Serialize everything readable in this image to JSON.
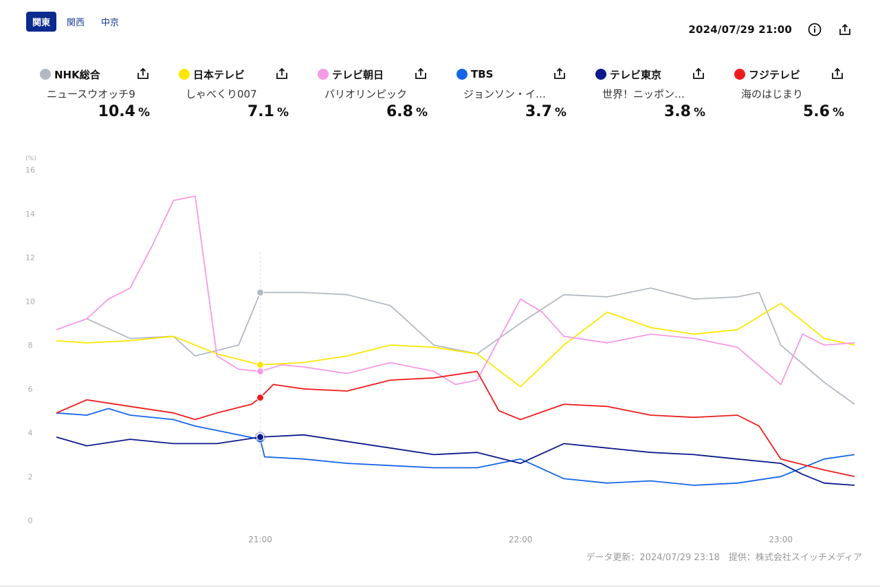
{
  "tabs": [
    {
      "label": "関東",
      "active": true
    },
    {
      "label": "関西",
      "active": false
    },
    {
      "label": "中京",
      "active": false
    }
  ],
  "header": {
    "datetime": "2024/07/29 21:00",
    "icons": [
      "info-icon",
      "share-icon"
    ]
  },
  "channels": [
    {
      "name": "NHK総合",
      "color": "#b3b9c4",
      "program": "ニュースウオッチ9",
      "rating": "10.4",
      "unit": "%"
    },
    {
      "name": "日本テレビ",
      "color": "#ffe600",
      "program": "しゃべくり007",
      "rating": "7.1",
      "unit": "%"
    },
    {
      "name": "テレビ朝日",
      "color": "#f59ae6",
      "program": "パリオリンピック",
      "rating": "6.8",
      "unit": "%"
    },
    {
      "name": "TBS",
      "color": "#1565e8",
      "program": "ジョンソン・イ…",
      "rating": "3.7",
      "unit": "%"
    },
    {
      "name": "テレビ東京",
      "color": "#0b1a8a",
      "program": "世界！ニッポン…",
      "rating": "3.8",
      "unit": "%"
    },
    {
      "name": "フジテレビ",
      "color": "#ee1c1c",
      "program": "海のはじまり",
      "rating": "5.6",
      "unit": "%"
    }
  ],
  "footer": {
    "text": "データ更新：2024/07/29 23:18　提供：株式会社スイッチメディア"
  },
  "chart_data": {
    "type": "line",
    "unit_label": "(%)",
    "ylim": [
      0,
      16
    ],
    "yticks": [
      0,
      2,
      4,
      6,
      8,
      10,
      12,
      14,
      16
    ],
    "xlim": [
      "20:13",
      "23:17"
    ],
    "xticks": [
      "21:00",
      "22:00",
      "23:00"
    ],
    "grid": false,
    "selected_time": "21:00",
    "series": [
      {
        "name": "NHK総合",
        "color": "#b3b9c4",
        "x": [
          "20:13",
          "20:20",
          "20:30",
          "20:40",
          "20:45",
          "20:55",
          "21:00",
          "21:10",
          "21:20",
          "21:30",
          "21:40",
          "21:50",
          "22:00",
          "22:10",
          "22:20",
          "22:30",
          "22:40",
          "22:50",
          "22:55",
          "23:00",
          "23:10",
          "23:17"
        ],
        "values": [
          8.7,
          9.2,
          8.3,
          8.4,
          7.5,
          8.0,
          10.4,
          10.4,
          10.3,
          9.8,
          8.0,
          7.6,
          9.0,
          10.3,
          10.2,
          10.6,
          10.1,
          10.2,
          10.4,
          8.0,
          6.3,
          5.3
        ]
      },
      {
        "name": "日本テレビ",
        "color": "#ffe600",
        "x": [
          "20:13",
          "20:20",
          "20:30",
          "20:40",
          "20:50",
          "21:00",
          "21:10",
          "21:20",
          "21:30",
          "21:40",
          "21:50",
          "22:00",
          "22:10",
          "22:20",
          "22:30",
          "22:40",
          "22:50",
          "23:00",
          "23:10",
          "23:17"
        ],
        "values": [
          8.2,
          8.1,
          8.2,
          8.4,
          7.6,
          7.1,
          7.2,
          7.5,
          8.0,
          7.9,
          7.6,
          6.1,
          8.0,
          9.5,
          8.8,
          8.5,
          8.7,
          9.9,
          8.3,
          8.0
        ]
      },
      {
        "name": "テレビ朝日",
        "color": "#f59ae6",
        "x": [
          "20:13",
          "20:20",
          "20:25",
          "20:30",
          "20:35",
          "20:40",
          "20:45",
          "20:50",
          "20:55",
          "21:00",
          "21:05",
          "21:10",
          "21:20",
          "21:30",
          "21:40",
          "21:45",
          "21:50",
          "22:00",
          "22:05",
          "22:10",
          "22:20",
          "22:30",
          "22:40",
          "22:50",
          "23:00",
          "23:05",
          "23:10",
          "23:17"
        ],
        "values": [
          8.7,
          9.2,
          10.1,
          10.6,
          12.5,
          14.6,
          14.8,
          7.5,
          6.9,
          6.8,
          7.1,
          7.0,
          6.7,
          7.2,
          6.8,
          6.2,
          6.4,
          10.1,
          9.5,
          8.4,
          8.1,
          8.5,
          8.3,
          7.9,
          6.2,
          8.5,
          8.0,
          8.1
        ]
      },
      {
        "name": "TBS",
        "color": "#1565e8",
        "x": [
          "20:13",
          "20:20",
          "20:25",
          "20:30",
          "20:40",
          "20:45",
          "20:50",
          "21:00",
          "21:01",
          "21:10",
          "21:20",
          "21:30",
          "21:40",
          "21:50",
          "22:00",
          "22:10",
          "22:20",
          "22:30",
          "22:40",
          "22:50",
          "23:00",
          "23:10",
          "23:17"
        ],
        "values": [
          4.9,
          4.8,
          5.1,
          4.8,
          4.6,
          4.3,
          4.1,
          3.7,
          2.9,
          2.8,
          2.6,
          2.5,
          2.4,
          2.4,
          2.8,
          1.9,
          1.7,
          1.8,
          1.6,
          1.7,
          2.0,
          2.8,
          3.0
        ]
      },
      {
        "name": "テレビ東京",
        "color": "#0b1a8a",
        "x": [
          "20:13",
          "20:20",
          "20:30",
          "20:40",
          "20:50",
          "21:00",
          "21:10",
          "21:20",
          "21:30",
          "21:40",
          "21:50",
          "22:00",
          "22:10",
          "22:20",
          "22:30",
          "22:40",
          "22:50",
          "23:00",
          "23:05",
          "23:10",
          "23:17"
        ],
        "values": [
          3.8,
          3.4,
          3.7,
          3.5,
          3.5,
          3.8,
          3.9,
          3.6,
          3.3,
          3.0,
          3.1,
          2.6,
          3.5,
          3.3,
          3.1,
          3.0,
          2.8,
          2.6,
          2.1,
          1.7,
          1.6
        ]
      },
      {
        "name": "フジテレビ",
        "color": "#ee1c1c",
        "x": [
          "20:13",
          "20:20",
          "20:30",
          "20:40",
          "20:45",
          "20:50",
          "20:58",
          "21:00",
          "21:03",
          "21:10",
          "21:20",
          "21:30",
          "21:40",
          "21:50",
          "21:55",
          "22:00",
          "22:10",
          "22:20",
          "22:30",
          "22:40",
          "22:50",
          "22:55",
          "23:00",
          "23:10",
          "23:17"
        ],
        "values": [
          4.9,
          5.5,
          5.2,
          4.9,
          4.6,
          4.9,
          5.3,
          5.6,
          6.2,
          6.0,
          5.9,
          6.4,
          6.5,
          6.8,
          5.0,
          4.6,
          5.3,
          5.2,
          4.8,
          4.7,
          4.8,
          4.3,
          2.8,
          2.3,
          2.0
        ]
      }
    ]
  }
}
